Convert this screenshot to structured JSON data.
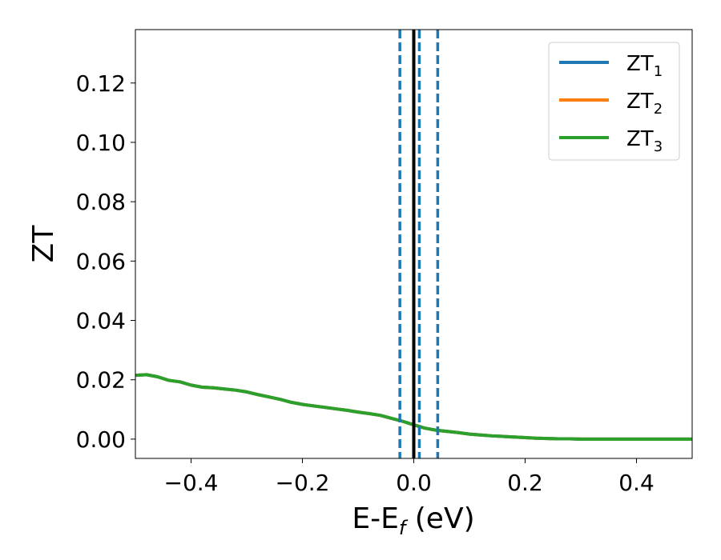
{
  "chart_data": {
    "type": "line",
    "xlabel_main": "E-E",
    "xlabel_sub": "f",
    "xlabel_unit": " (eV)",
    "ylabel": "ZT",
    "xlim": [
      -0.5,
      0.5
    ],
    "ylim": [
      -0.0065,
      0.138
    ],
    "xticks": [
      -0.4,
      -0.2,
      0.0,
      0.2,
      0.4
    ],
    "xtick_labels": [
      "−0.4",
      "−0.2",
      "0.0",
      "0.2",
      "0.4"
    ],
    "yticks": [
      0.0,
      0.02,
      0.04,
      0.06,
      0.08,
      0.1,
      0.12
    ],
    "ytick_labels": [
      "0.00",
      "0.02",
      "0.04",
      "0.06",
      "0.08",
      "0.10",
      "0.12"
    ],
    "legend_position": "top-right",
    "series": [
      {
        "name": "ZT",
        "name_sub": "1",
        "color": "#1f77b4",
        "x": [
          -0.5,
          -0.48,
          -0.46,
          -0.44,
          -0.42,
          -0.4,
          -0.38,
          -0.36,
          -0.34,
          -0.32,
          -0.3,
          -0.28,
          -0.26,
          -0.24,
          -0.22,
          -0.2,
          -0.18,
          -0.16,
          -0.14,
          -0.12,
          -0.1,
          -0.08,
          -0.06,
          -0.04,
          -0.02,
          0.0,
          0.02,
          0.04,
          0.06,
          0.08,
          0.1,
          0.12,
          0.14,
          0.16,
          0.18,
          0.2,
          0.22,
          0.24,
          0.26,
          0.28,
          0.3,
          0.32,
          0.34,
          0.36,
          0.38,
          0.4,
          0.42,
          0.44,
          0.46,
          0.48,
          0.5
        ],
        "y": [
          0.0215,
          0.0217,
          0.021,
          0.0198,
          0.0193,
          0.0182,
          0.0175,
          0.0173,
          0.0169,
          0.0165,
          0.0159,
          0.015,
          0.0142,
          0.0134,
          0.0124,
          0.0117,
          0.0112,
          0.0107,
          0.0102,
          0.0097,
          0.0091,
          0.0086,
          0.008,
          0.007,
          0.006,
          0.0048,
          0.0037,
          0.003,
          0.0026,
          0.0022,
          0.0017,
          0.0014,
          0.0011,
          0.0009,
          0.0007,
          0.0005,
          0.0003,
          0.0002,
          0.0001,
          0.0001,
          0.0,
          0.0,
          0.0,
          0.0,
          0.0,
          0.0,
          0.0,
          0.0,
          0.0,
          0.0,
          0.0
        ]
      },
      {
        "name": "ZT",
        "name_sub": "2",
        "color": "#ff7f0e",
        "x": [
          -0.5,
          -0.48,
          -0.46,
          -0.44,
          -0.42,
          -0.4,
          -0.38,
          -0.36,
          -0.34,
          -0.32,
          -0.3,
          -0.28,
          -0.26,
          -0.24,
          -0.22,
          -0.2,
          -0.18,
          -0.16,
          -0.14,
          -0.12,
          -0.1,
          -0.08,
          -0.06,
          -0.04,
          -0.02,
          0.0,
          0.02,
          0.04,
          0.06,
          0.08,
          0.1,
          0.12,
          0.14,
          0.16,
          0.18,
          0.2,
          0.22,
          0.24,
          0.26,
          0.28,
          0.3,
          0.32,
          0.34,
          0.36,
          0.38,
          0.4,
          0.42,
          0.44,
          0.46,
          0.48,
          0.5
        ],
        "y": [
          0.0215,
          0.0217,
          0.021,
          0.0198,
          0.0193,
          0.0182,
          0.0175,
          0.0173,
          0.0169,
          0.0165,
          0.0159,
          0.015,
          0.0142,
          0.0134,
          0.0124,
          0.0117,
          0.0112,
          0.0107,
          0.0102,
          0.0097,
          0.0091,
          0.0086,
          0.008,
          0.007,
          0.006,
          0.0048,
          0.0037,
          0.003,
          0.0026,
          0.0022,
          0.0017,
          0.0014,
          0.0011,
          0.0009,
          0.0007,
          0.0005,
          0.0003,
          0.0002,
          0.0001,
          0.0001,
          0.0,
          0.0,
          0.0,
          0.0,
          0.0,
          0.0,
          0.0,
          0.0,
          0.0,
          0.0,
          0.0
        ]
      },
      {
        "name": "ZT",
        "name_sub": "3",
        "color": "#2ca02c",
        "x": [
          -0.5,
          -0.48,
          -0.46,
          -0.44,
          -0.42,
          -0.4,
          -0.38,
          -0.36,
          -0.34,
          -0.32,
          -0.3,
          -0.28,
          -0.26,
          -0.24,
          -0.22,
          -0.2,
          -0.18,
          -0.16,
          -0.14,
          -0.12,
          -0.1,
          -0.08,
          -0.06,
          -0.04,
          -0.02,
          0.0,
          0.02,
          0.04,
          0.06,
          0.08,
          0.1,
          0.12,
          0.14,
          0.16,
          0.18,
          0.2,
          0.22,
          0.24,
          0.26,
          0.28,
          0.3,
          0.32,
          0.34,
          0.36,
          0.38,
          0.4,
          0.42,
          0.44,
          0.46,
          0.48,
          0.5
        ],
        "y": [
          0.0215,
          0.0217,
          0.021,
          0.0198,
          0.0193,
          0.0182,
          0.0175,
          0.0173,
          0.0169,
          0.0165,
          0.0159,
          0.015,
          0.0142,
          0.0134,
          0.0124,
          0.0117,
          0.0112,
          0.0107,
          0.0102,
          0.0097,
          0.0091,
          0.0086,
          0.008,
          0.007,
          0.006,
          0.0048,
          0.0037,
          0.003,
          0.0026,
          0.0022,
          0.0017,
          0.0014,
          0.0011,
          0.0009,
          0.0007,
          0.0005,
          0.0003,
          0.0002,
          0.0001,
          0.0001,
          0.0,
          0.0,
          0.0,
          0.0,
          0.0,
          0.0,
          0.0,
          0.0,
          0.0,
          0.0,
          0.0
        ]
      }
    ],
    "vlines": [
      {
        "x": 0.0,
        "style": "solid",
        "color": "#000000"
      },
      {
        "x": -0.025,
        "style": "dashed",
        "color": "#1f77b4"
      },
      {
        "x": 0.01,
        "style": "dashed",
        "color": "#1f77b4"
      },
      {
        "x": 0.043,
        "style": "dashed",
        "color": "#1f77b4"
      }
    ]
  }
}
